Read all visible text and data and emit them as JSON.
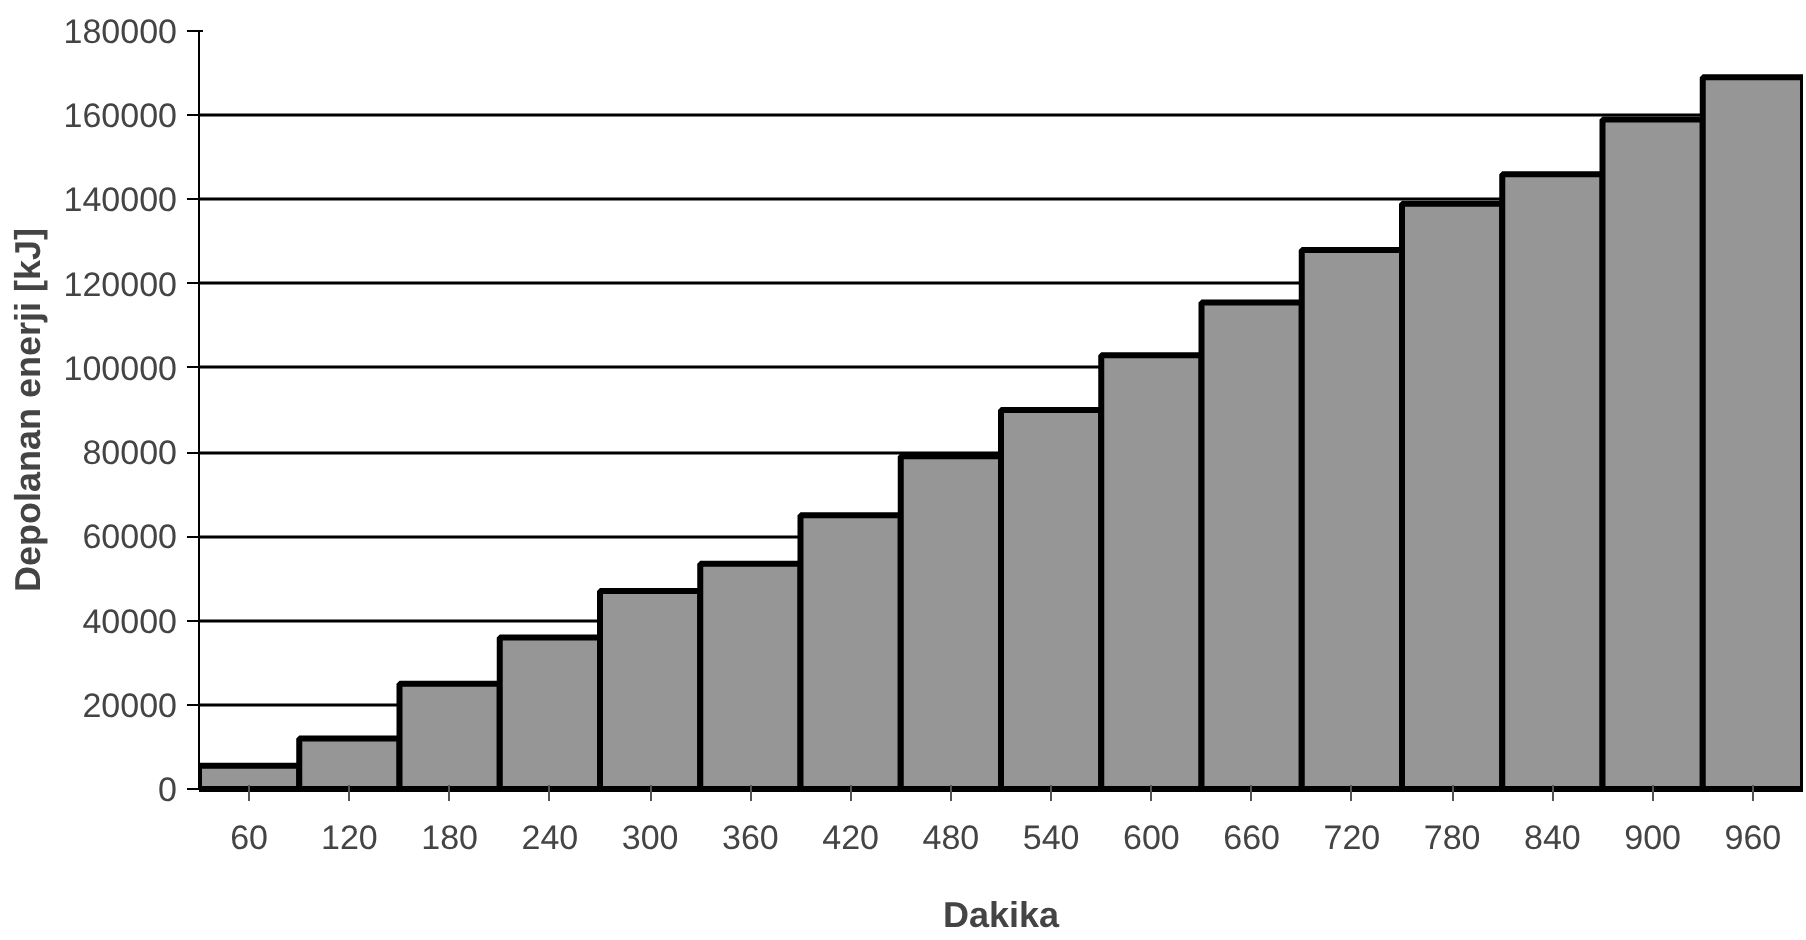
{
  "chart_data": {
    "type": "bar",
    "xlabel": "Dakika",
    "ylabel": "Depolanan enerji [kJ]",
    "categories": [
      "60",
      "120",
      "180",
      "240",
      "300",
      "360",
      "420",
      "480",
      "540",
      "600",
      "660",
      "720",
      "780",
      "840",
      "900",
      "960"
    ],
    "values": [
      5500,
      12000,
      25000,
      36000,
      47000,
      53500,
      65000,
      79000,
      90000,
      103000,
      115500,
      128000,
      139000,
      146000,
      159000,
      169000
    ],
    "color": "#969696",
    "ylim": [
      0,
      180000
    ],
    "yticks": [
      0,
      20000,
      40000,
      60000,
      80000,
      100000,
      120000,
      140000,
      160000,
      180000
    ],
    "grid": "y"
  }
}
